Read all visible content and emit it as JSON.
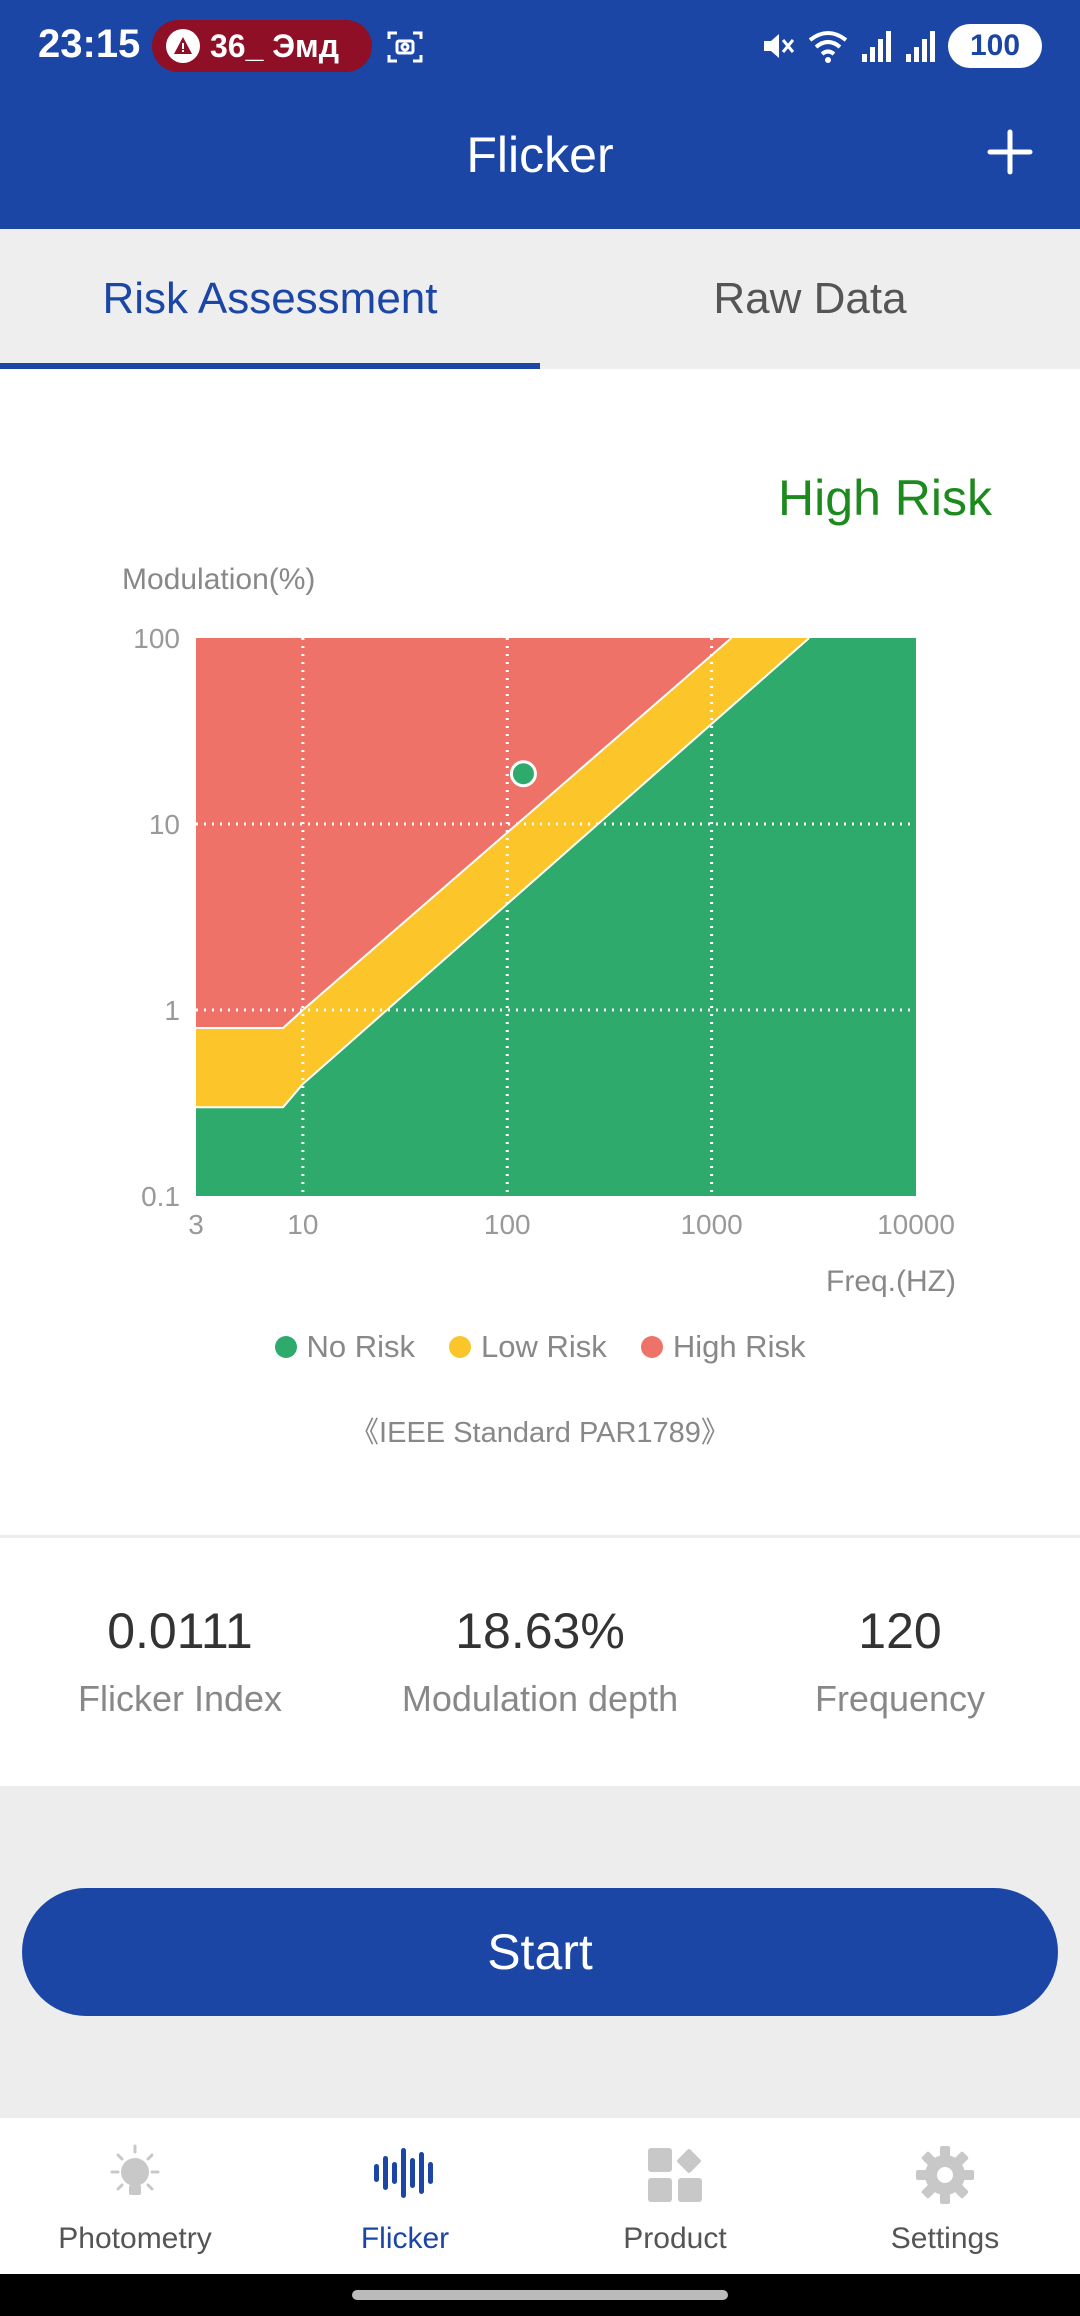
{
  "status_bar": {
    "time": "23:15",
    "notification_text": "36_ Эмд",
    "battery": "100"
  },
  "app_bar": {
    "title": "Flicker"
  },
  "tabs": [
    {
      "label": "Risk Assessment",
      "active": true
    },
    {
      "label": "Raw Data",
      "active": false
    }
  ],
  "risk": {
    "level": "High Risk",
    "level_color": "#1d8a1d"
  },
  "chart_data": {
    "type": "area",
    "title": "",
    "ylabel": "Modulation(%)",
    "xlabel": "Freq.(HZ)",
    "x_scale": "log",
    "y_scale": "log",
    "xlim": [
      3,
      10000
    ],
    "ylim": [
      0.1,
      100
    ],
    "x_ticks": [
      "3",
      "10",
      "100",
      "1000",
      "10000"
    ],
    "y_ticks": [
      "0.1",
      "1",
      "10",
      "100"
    ],
    "grid": true,
    "regions": [
      {
        "name": "No Risk",
        "color": "#2eaa6c",
        "boundary": [
          [
            3,
            0.3
          ],
          [
            8,
            0.3
          ],
          [
            10,
            0.4
          ],
          [
            3000,
            100
          ]
        ]
      },
      {
        "name": "Low Risk",
        "color": "#fcc52a",
        "boundary": [
          [
            3,
            0.8
          ],
          [
            8,
            0.8
          ],
          [
            10,
            1
          ],
          [
            1250,
            100
          ]
        ]
      },
      {
        "name": "High Risk",
        "color": "#ee7268"
      }
    ],
    "point": {
      "x": 120,
      "y": 18.63,
      "color": "#2eaa6c"
    },
    "legend_position": "bottom",
    "legend": [
      {
        "label": "No Risk",
        "color": "#2eaa6c"
      },
      {
        "label": "Low Risk",
        "color": "#fcc52a"
      },
      {
        "label": "High Risk",
        "color": "#ee7268"
      }
    ],
    "source": "《IEEE Standard PAR1789》"
  },
  "stats": [
    {
      "value": "0.0111",
      "label": "Flicker Index"
    },
    {
      "value": "18.63%",
      "label": "Modulation depth"
    },
    {
      "value": "120",
      "label": "Frequency"
    }
  ],
  "start_button": {
    "label": "Start"
  },
  "bottom_nav": [
    {
      "label": "Photometry",
      "icon": "bulb-icon",
      "active": false
    },
    {
      "label": "Flicker",
      "icon": "waveform-icon",
      "active": true
    },
    {
      "label": "Product",
      "icon": "grid-icon",
      "active": false
    },
    {
      "label": "Settings",
      "icon": "gear-icon",
      "active": false
    }
  ],
  "colors": {
    "primary": "#1b46a5",
    "no_risk": "#2eaa6c",
    "low_risk": "#fcc52a",
    "high_risk": "#ee7268"
  }
}
